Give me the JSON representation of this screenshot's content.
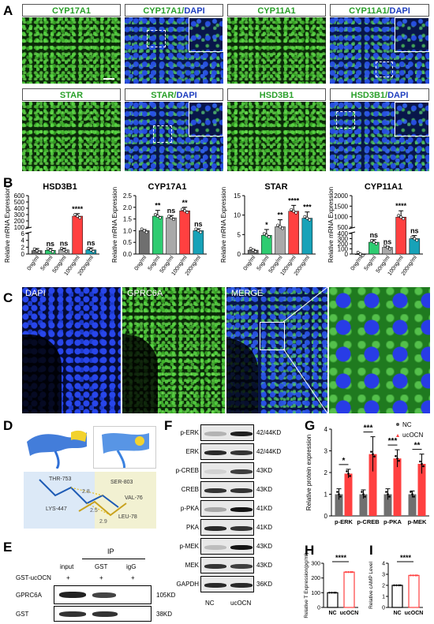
{
  "panels": {
    "A": "A",
    "B": "B",
    "C": "C",
    "D": "D",
    "E": "E",
    "F": "F",
    "G": "G",
    "H": "H",
    "I": "I"
  },
  "panelA": {
    "tiles": [
      {
        "green": "CYP17A1",
        "blue": ""
      },
      {
        "green": "CYP17A1/",
        "blue": "DAPI"
      },
      {
        "green": "CYP11A1",
        "blue": ""
      },
      {
        "green": "CYP11A1/",
        "blue": "DAPI"
      },
      {
        "green": "STAR",
        "blue": ""
      },
      {
        "green": "STAR/",
        "blue": "DAPI"
      },
      {
        "green": "HSD3B1",
        "blue": ""
      },
      {
        "green": "HSD3B1/",
        "blue": "DAPI"
      }
    ]
  },
  "panelC": {
    "labels": [
      "DAPI",
      "GPRC6A",
      "MERGE"
    ]
  },
  "panelE": {
    "ip_header": "IP",
    "columns": [
      "input",
      "GST",
      "igG"
    ],
    "treatment_label": "GST-ucOCN",
    "treatment_marks": [
      "+",
      "+",
      "+"
    ],
    "rows": [
      {
        "name": "GPRC6A",
        "size": "105KD"
      },
      {
        "name": "GST",
        "size": "38KD"
      }
    ]
  },
  "panelF": {
    "rows": [
      {
        "name": "p-ERK",
        "size": "42/44KD"
      },
      {
        "name": "ERK",
        "size": "42/44KD"
      },
      {
        "name": "p-CREB",
        "size": "43KD"
      },
      {
        "name": "CREB",
        "size": "43KD"
      },
      {
        "name": "p-PKA",
        "size": "41KD"
      },
      {
        "name": "PKA",
        "size": "41KD"
      },
      {
        "name": "p-MEK",
        "size": "43KD"
      },
      {
        "name": "MEK",
        "size": "43KD"
      },
      {
        "name": "GAPDH",
        "size": "36KD"
      }
    ],
    "columns": [
      "NC",
      "ucOCN"
    ]
  },
  "panelD": {
    "residues": [
      "THR-753",
      "SER-803",
      "LYS-447",
      "LEU-78",
      "VAL-76",
      "2.8",
      "2.5",
      "2.9"
    ]
  },
  "chart_data": [
    {
      "type": "bar",
      "title": "HSD3B1",
      "ylabel": "Relative mRNA Expression",
      "categories": [
        "0ng/ml",
        "5ng/ml",
        "50ng/ml",
        "100ng/ml",
        "200ng/ml"
      ],
      "values": [
        1.0,
        1.1,
        1.2,
        275,
        1.2
      ],
      "errors": [
        0.6,
        0.5,
        0.5,
        40,
        0.6
      ],
      "significance": [
        "",
        "ns",
        "ns",
        "****",
        "ns"
      ],
      "y_ticks_lower": [
        "0",
        "2",
        "4",
        "6"
      ],
      "y_ticks_upper": [
        "100",
        "200",
        "300",
        "400",
        "500",
        "600"
      ],
      "broken_axis": true
    },
    {
      "type": "bar",
      "title": "CYP17A1",
      "ylabel": "Relative mRNA Expression",
      "categories": [
        "0ng/ml",
        "5ng/ml",
        "50ng/ml",
        "100ng/ml",
        "200ng/ml"
      ],
      "values": [
        1.0,
        1.62,
        1.55,
        1.85,
        1.0
      ],
      "errors": [
        0.05,
        0.25,
        0.1,
        0.15,
        0.08
      ],
      "significance": [
        "",
        "**",
        "ns",
        "**",
        "ns"
      ],
      "y_ticks": [
        "0.0",
        "0.5",
        "1.0",
        "1.5",
        "2.0",
        "2.5"
      ],
      "ylim": [
        0,
        2.5
      ]
    },
    {
      "type": "bar",
      "title": "STAR",
      "ylabel": "Relative mRNA Expression",
      "categories": [
        "0ng/ml",
        "5ng/ml",
        "50ng/ml",
        "100ng/ml",
        "200ng/ml"
      ],
      "values": [
        1.0,
        4.8,
        7.0,
        11.0,
        9.2
      ],
      "errors": [
        0.2,
        1.5,
        1.8,
        1.5,
        1.6
      ],
      "significance": [
        "",
        "*",
        "**",
        "****",
        "***"
      ],
      "y_ticks": [
        "0",
        "5",
        "10",
        "15"
      ],
      "ylim": [
        0,
        15
      ]
    },
    {
      "type": "bar",
      "title": "CYP11A1",
      "ylabel": "Relative mRNA Expression",
      "categories": [
        "0ng/ml",
        "5ng/ml",
        "50ng/ml",
        "100ng/ml",
        "200ng/ml"
      ],
      "values": [
        1.0,
        230,
        130,
        980,
        300
      ],
      "errors": [
        0.5,
        50,
        20,
        300,
        60
      ],
      "significance": [
        "",
        "ns",
        "ns",
        "****",
        "ns"
      ],
      "y_ticks_lower": [
        "0",
        "100",
        "200",
        "300",
        "400"
      ],
      "y_ticks_upper": [
        "500",
        "1000",
        "1500",
        "2000"
      ],
      "broken_axis": true
    },
    {
      "type": "bar",
      "ylabel": "Relative protein expression",
      "categories": [
        "p-ERK",
        "p-CREB",
        "p-PKA",
        "p-MEK"
      ],
      "series": [
        {
          "name": "NC",
          "values": [
            1.0,
            1.0,
            1.0,
            1.0
          ]
        },
        {
          "name": "ucOCN",
          "values": [
            1.95,
            2.85,
            2.65,
            2.4
          ]
        }
      ],
      "errors": {
        "NC": [
          0.25,
          0.2,
          0.25,
          0.15
        ],
        "ucOCN": [
          0.2,
          0.8,
          0.4,
          0.45
        ]
      },
      "significance": [
        "*",
        "***",
        "***",
        "**"
      ],
      "y_ticks": [
        "0",
        "1",
        "2",
        "3",
        "4"
      ],
      "ylim": [
        0,
        4
      ],
      "legend": "top-right"
    },
    {
      "type": "bar",
      "ylabel": "Relative T Expression(pg/ml)",
      "categories": [
        "NC",
        "ucOCN"
      ],
      "values": [
        100,
        240
      ],
      "significance": "****",
      "y_ticks": [
        "0",
        "100",
        "200",
        "300"
      ],
      "ylim": [
        0,
        300
      ]
    },
    {
      "type": "bar",
      "ylabel": "Relative cAMP Level",
      "categories": [
        "NC",
        "ucOCN"
      ],
      "values": [
        2.0,
        2.9
      ],
      "significance": "****",
      "y_ticks": [
        "0",
        "1",
        "2",
        "3",
        "4"
      ],
      "ylim": [
        0,
        4
      ]
    }
  ],
  "colors": {
    "gray": "#6f6f6f",
    "green": "#2ecc71",
    "lightgray": "#a9a9a9",
    "red": "#ff4040",
    "teal": "#17a2b8"
  }
}
